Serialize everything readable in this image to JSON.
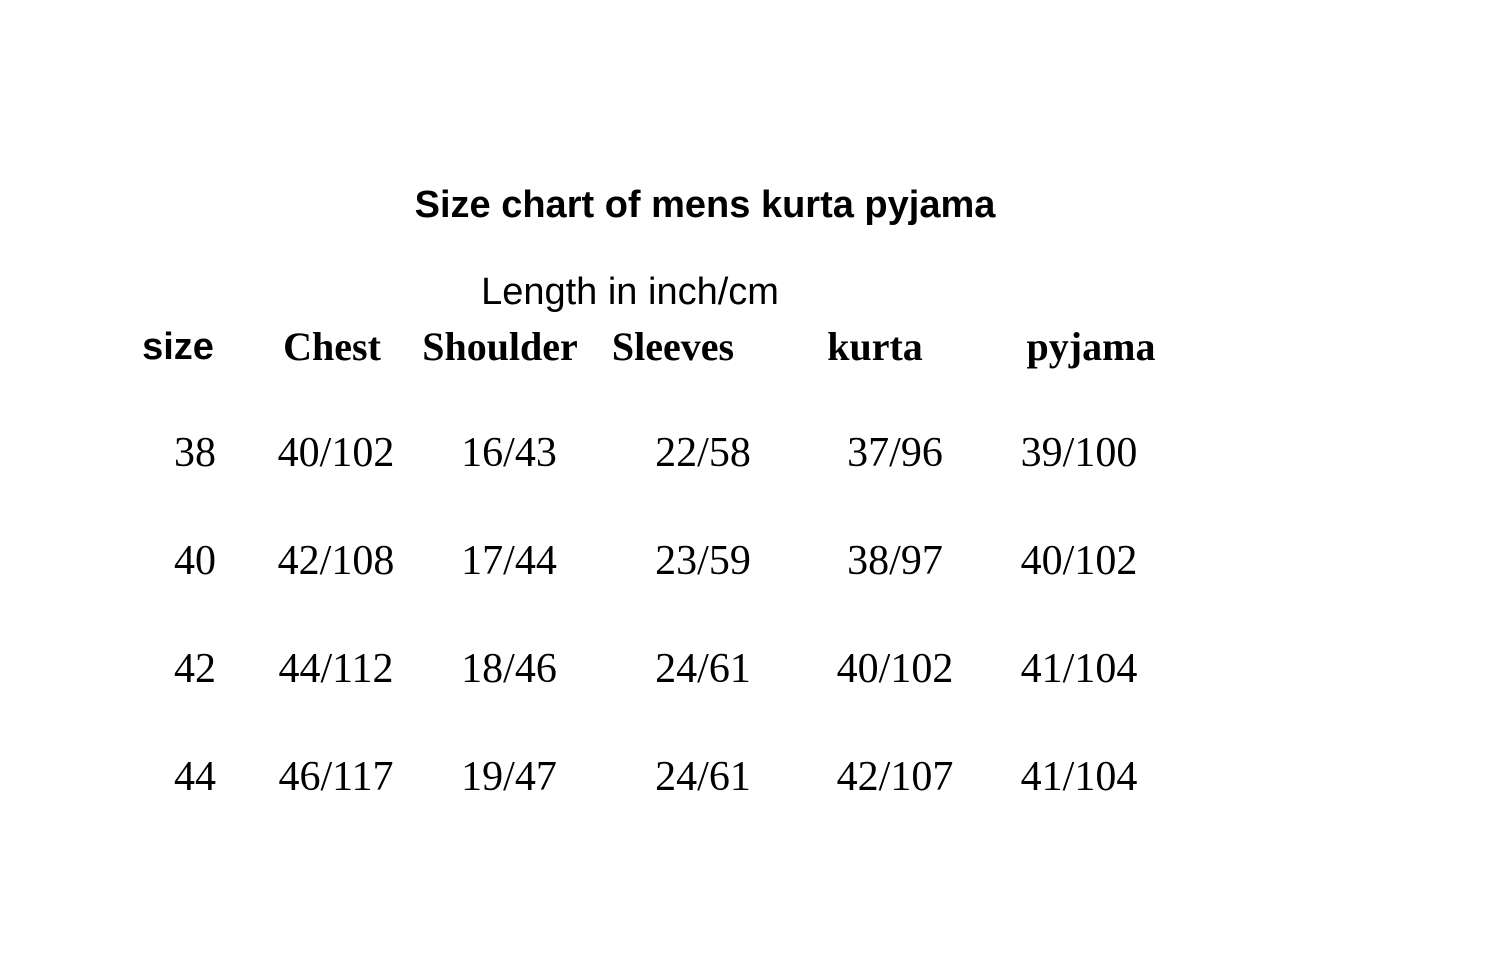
{
  "title": "Size chart of mens  kurta pyjama",
  "subtitle": "Length in inch/cm",
  "table": {
    "headers": [
      "size",
      "Chest",
      "Shoulder",
      "Sleeves",
      "kurta",
      "pyjama"
    ],
    "rows": [
      [
        "38",
        "40/102",
        "16/43",
        "22/58",
        "37/96",
        "39/100"
      ],
      [
        "40",
        "42/108",
        "17/44",
        "23/59",
        "38/97",
        "40/102"
      ],
      [
        "42",
        "44/112",
        "18/46",
        "24/61",
        "40/102",
        "41/104"
      ],
      [
        "44",
        "46/117",
        "19/47",
        "24/61",
        "42/107",
        "41/104"
      ]
    ]
  }
}
